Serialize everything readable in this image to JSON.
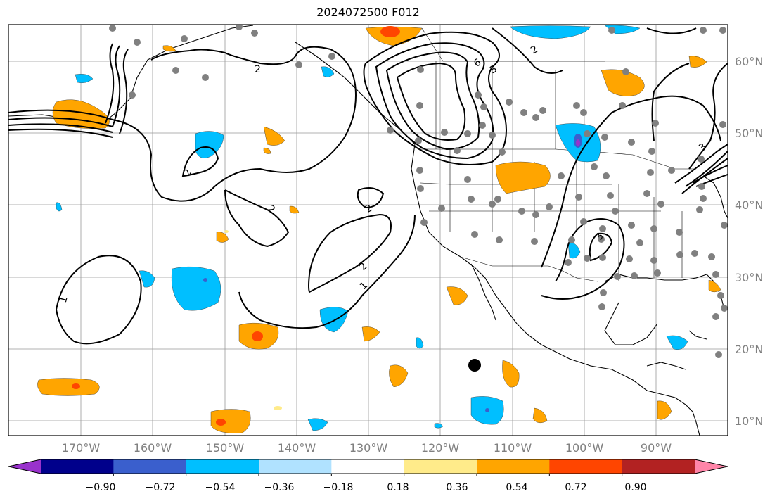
{
  "title": "2024072500 F012",
  "longitude_labels": [
    "170°W",
    "160°W",
    "150°W",
    "140°W",
    "130°W",
    "120°W",
    "110°W",
    "100°W",
    "90°W"
  ],
  "latitude_labels": [
    "60°N",
    "50°N",
    "40°N",
    "30°N",
    "20°N",
    "10°N"
  ],
  "colorbar": {
    "ticks": [
      "−0.90",
      "−0.72",
      "−0.54",
      "−0.36",
      "−0.18",
      "0.18",
      "0.36",
      "0.54",
      "0.72",
      "0.90"
    ],
    "colors": [
      "#9932cc",
      "#00008b",
      "#3a5fcd",
      "#00bfff",
      "#b0e2ff",
      "#ffffff",
      "#ffeb8a",
      "#ffa500",
      "#ff4500",
      "#b22222",
      "#ff85a8"
    ]
  },
  "contour_labels": [
    "2",
    "2",
    "2",
    "2",
    "2",
    "2",
    "3",
    "3",
    "1",
    "1",
    "6",
    "3"
  ],
  "colors": {
    "contour": "#000000",
    "station_dot": "#808080",
    "marker": "#000000",
    "grid": "#999999",
    "axis_label": "#808080"
  }
}
